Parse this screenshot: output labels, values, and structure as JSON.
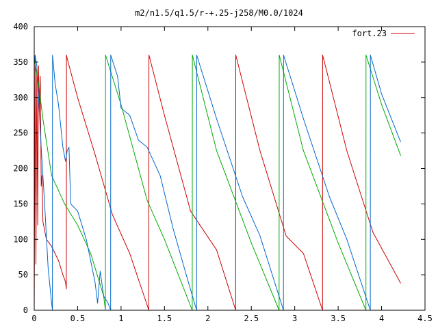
{
  "chart_data": {
    "type": "line",
    "title": "m2/n1.5/q1.5/r-+.25-j258/M0.0/1024",
    "xlabel": "",
    "ylabel": "",
    "xlim": [
      0,
      4.5
    ],
    "ylim": [
      0,
      400
    ],
    "grid": false,
    "legend_position": "top-right",
    "x_ticks": [
      0,
      0.5,
      1,
      1.5,
      2,
      2.5,
      3,
      3.5,
      4,
      4.5
    ],
    "x_tick_labels": [
      "0",
      "0.5",
      "1",
      "1.5",
      "2",
      "2.5",
      "3",
      "3.5",
      "4",
      "4.5"
    ],
    "y_ticks": [
      0,
      50,
      100,
      150,
      200,
      250,
      300,
      350,
      400
    ],
    "y_tick_labels": [
      "0",
      "50",
      "100",
      "150",
      "200",
      "250",
      "300",
      "350",
      "400"
    ],
    "series": [
      {
        "name": "fort.23",
        "color": "#cc0000",
        "points": [
          [
            0.0,
            0
          ],
          [
            0.01,
            355
          ],
          [
            0.02,
            65
          ],
          [
            0.03,
            340
          ],
          [
            0.04,
            120
          ],
          [
            0.05,
            345
          ],
          [
            0.06,
            280
          ],
          [
            0.07,
            330
          ],
          [
            0.08,
            175
          ],
          [
            0.09,
            190
          ],
          [
            0.1,
            125
          ],
          [
            0.14,
            100
          ],
          [
            0.2,
            90
          ],
          [
            0.28,
            70
          ],
          [
            0.33,
            50
          ],
          [
            0.36,
            40
          ],
          [
            0.37,
            30
          ],
          [
            0.371,
            360
          ],
          [
            0.38,
            355
          ],
          [
            0.5,
            300
          ],
          [
            0.7,
            220
          ],
          [
            0.9,
            135
          ],
          [
            1.1,
            80
          ],
          [
            1.32,
            0
          ],
          [
            1.321,
            360
          ],
          [
            1.5,
            275
          ],
          [
            1.8,
            140
          ],
          [
            2.1,
            85
          ],
          [
            2.32,
            0
          ],
          [
            2.321,
            360
          ],
          [
            2.6,
            225
          ],
          [
            2.9,
            105
          ],
          [
            3.1,
            80
          ],
          [
            3.32,
            0
          ],
          [
            3.321,
            360
          ],
          [
            3.6,
            225
          ],
          [
            3.9,
            110
          ],
          [
            4.22,
            38
          ]
        ]
      },
      {
        "color": "#00aa00",
        "points": [
          [
            0.0,
            355
          ],
          [
            0.02,
            340
          ],
          [
            0.05,
            320
          ],
          [
            0.1,
            270
          ],
          [
            0.2,
            190
          ],
          [
            0.35,
            150
          ],
          [
            0.5,
            120
          ],
          [
            0.65,
            80
          ],
          [
            0.8,
            20
          ],
          [
            0.82,
            0
          ],
          [
            0.821,
            360
          ],
          [
            1.0,
            290
          ],
          [
            1.3,
            155
          ],
          [
            1.5,
            100
          ],
          [
            1.82,
            0
          ],
          [
            1.821,
            360
          ],
          [
            2.1,
            225
          ],
          [
            2.5,
            95
          ],
          [
            2.82,
            0
          ],
          [
            2.821,
            360
          ],
          [
            3.1,
            225
          ],
          [
            3.5,
            95
          ],
          [
            3.82,
            0
          ],
          [
            3.821,
            360
          ],
          [
            4.0,
            290
          ],
          [
            4.22,
            218
          ]
        ]
      },
      {
        "color": "#0066cc",
        "points": [
          [
            0.0,
            350
          ],
          [
            0.01,
            360
          ],
          [
            0.03,
            345
          ],
          [
            0.05,
            300
          ],
          [
            0.08,
            230
          ],
          [
            0.12,
            150
          ],
          [
            0.16,
            60
          ],
          [
            0.2,
            10
          ],
          [
            0.21,
            0
          ],
          [
            0.211,
            360
          ],
          [
            0.24,
            320
          ],
          [
            0.28,
            290
          ],
          [
            0.33,
            230
          ],
          [
            0.36,
            210
          ],
          [
            0.38,
            225
          ],
          [
            0.4,
            230
          ],
          [
            0.42,
            150
          ],
          [
            0.5,
            140
          ],
          [
            0.6,
            100
          ],
          [
            0.7,
            40
          ],
          [
            0.73,
            10
          ],
          [
            0.76,
            55
          ],
          [
            0.8,
            20
          ],
          [
            0.85,
            10
          ],
          [
            0.88,
            0
          ],
          [
            0.881,
            360
          ],
          [
            0.96,
            330
          ],
          [
            1.0,
            285
          ],
          [
            1.05,
            280
          ],
          [
            1.1,
            275
          ],
          [
            1.2,
            240
          ],
          [
            1.3,
            230
          ],
          [
            1.45,
            190
          ],
          [
            1.6,
            115
          ],
          [
            1.75,
            50
          ],
          [
            1.87,
            0
          ],
          [
            1.871,
            360
          ],
          [
            2.1,
            270
          ],
          [
            2.4,
            160
          ],
          [
            2.6,
            105
          ],
          [
            2.87,
            0
          ],
          [
            2.871,
            360
          ],
          [
            3.1,
            270
          ],
          [
            3.4,
            160
          ],
          [
            3.6,
            100
          ],
          [
            3.87,
            0
          ],
          [
            3.871,
            360
          ],
          [
            4.0,
            305
          ],
          [
            4.22,
            237
          ]
        ]
      }
    ]
  }
}
